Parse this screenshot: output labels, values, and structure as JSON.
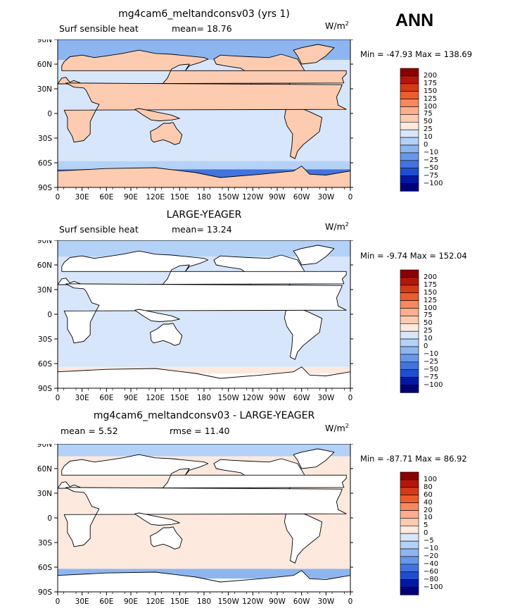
{
  "season": "ANN",
  "units": {
    "base": "W/m",
    "exp": "2"
  },
  "panels": [
    {
      "title": "mg4cam6_meltandconsv03 (yrs 1)",
      "left_label": "Surf sensible heat",
      "stat1_label": "mean=",
      "stat1_value": "18.76",
      "stat2_label": "",
      "stat2_value": "",
      "min_label": "Min =",
      "min_value": "-47.93",
      "max_label": "Max =",
      "max_value": "138.69",
      "colorbar_levels": [
        "200",
        "175",
        "150",
        "125",
        "100",
        "75",
        "50",
        "25",
        "10",
        "0",
        "−10",
        "−25",
        "−50",
        "−75",
        "−100"
      ],
      "colorbar_colors": [
        "#8b0000",
        "#b5160c",
        "#d43a16",
        "#ec5d2e",
        "#f7885f",
        "#fcae8f",
        "#fdcbb0",
        "#fde9dd",
        "#d7e6fa",
        "#b4d1f7",
        "#8db6f0",
        "#6797e8",
        "#4373dd",
        "#1f4fd0",
        "#0018a6",
        "#000076"
      ],
      "map_bands": [
        {
          "lat_from": 90,
          "lat_to": 65,
          "color": "#8db6f0"
        },
        {
          "lat_from": 65,
          "lat_to": -58,
          "color": "#d7e6fa"
        },
        {
          "lat_from": -58,
          "lat_to": -68,
          "color": "#b4d1f7"
        },
        {
          "lat_from": -68,
          "lat_to": -90,
          "color": "#4373dd"
        }
      ],
      "land_color": "#fdcbb0"
    },
    {
      "title": "LARGE-YEAGER",
      "left_label": "Surf sensible heat",
      "stat1_label": "mean=",
      "stat1_value": "13.24",
      "stat2_label": "",
      "stat2_value": "",
      "min_label": "Min =",
      "min_value": "-9.74",
      "max_label": "Max =",
      "max_value": "152.04",
      "colorbar_levels": [
        "200",
        "175",
        "150",
        "125",
        "100",
        "75",
        "50",
        "25",
        "10",
        "0",
        "−10",
        "−25",
        "−50",
        "−75",
        "−100"
      ],
      "colorbar_colors": [
        "#8b0000",
        "#b5160c",
        "#d43a16",
        "#ec5d2e",
        "#f7885f",
        "#fcae8f",
        "#fdcbb0",
        "#fde9dd",
        "#d7e6fa",
        "#b4d1f7",
        "#8db6f0",
        "#6797e8",
        "#4373dd",
        "#1f4fd0",
        "#0018a6",
        "#000076"
      ],
      "map_bands": [
        {
          "lat_from": 90,
          "lat_to": 70,
          "color": "#b4d1f7"
        },
        {
          "lat_from": 70,
          "lat_to": -64,
          "color": "#d7e6fa"
        },
        {
          "lat_from": -64,
          "lat_to": -72,
          "color": "#fde9dd"
        },
        {
          "lat_from": -72,
          "lat_to": -90,
          "color": "#ffffff"
        }
      ],
      "land_color": "#ffffff"
    },
    {
      "title": "mg4cam6_meltandconsv03 - LARGE-YEAGER",
      "left_label": "",
      "stat1_label": "mean =",
      "stat1_value": "5.52",
      "stat2_label": "rmse =",
      "stat2_value": "11.40",
      "min_label": "Min =",
      "min_value": "-87.71",
      "max_label": "Max =",
      "max_value": "86.92",
      "colorbar_levels": [
        "100",
        "80",
        "60",
        "40",
        "20",
        "10",
        "5",
        "0",
        "−5",
        "−10",
        "−20",
        "−40",
        "−60",
        "−80",
        "−100"
      ],
      "colorbar_colors": [
        "#8b0000",
        "#b5160c",
        "#d43a16",
        "#ec5d2e",
        "#f7885f",
        "#fcae8f",
        "#fdcbb0",
        "#fde9dd",
        "#d7e6fa",
        "#b4d1f7",
        "#8db6f0",
        "#6797e8",
        "#4373dd",
        "#1f4fd0",
        "#0018a6",
        "#000076"
      ],
      "map_bands": [
        {
          "lat_from": 90,
          "lat_to": 75,
          "color": "#b4d1f7"
        },
        {
          "lat_from": 75,
          "lat_to": -62,
          "color": "#fde9dd"
        },
        {
          "lat_from": -62,
          "lat_to": -74,
          "color": "#8db6f0"
        },
        {
          "lat_from": -74,
          "lat_to": -90,
          "color": "#ffffff"
        }
      ],
      "land_color": "#ffffff"
    }
  ],
  "chart_data": {
    "type": "heatmap",
    "variable": "Surf sensible heat",
    "season": "ANN",
    "projection": "cylindrical equidistant",
    "x_ticks": [
      "0",
      "30E",
      "60E",
      "90E",
      "120E",
      "150E",
      "180",
      "150W",
      "120W",
      "90W",
      "60W",
      "30W",
      "0"
    ],
    "y_ticks": [
      "90N",
      "60N",
      "30N",
      "0",
      "30S",
      "60S",
      "90S"
    ],
    "xlim": [
      0,
      360
    ],
    "ylim": [
      -90,
      90
    ],
    "panels": [
      {
        "title": "mg4cam6_meltandconsv03 (yrs 1)",
        "mean": 18.76,
        "min": -47.93,
        "max": 138.69
      },
      {
        "title": "LARGE-YEAGER",
        "mean": 13.24,
        "min": -9.74,
        "max": 152.04
      },
      {
        "title": "mg4cam6_meltandconsv03 - LARGE-YEAGER",
        "mean": 5.52,
        "rmse": 11.4,
        "min": -87.71,
        "max": 86.92
      }
    ]
  }
}
